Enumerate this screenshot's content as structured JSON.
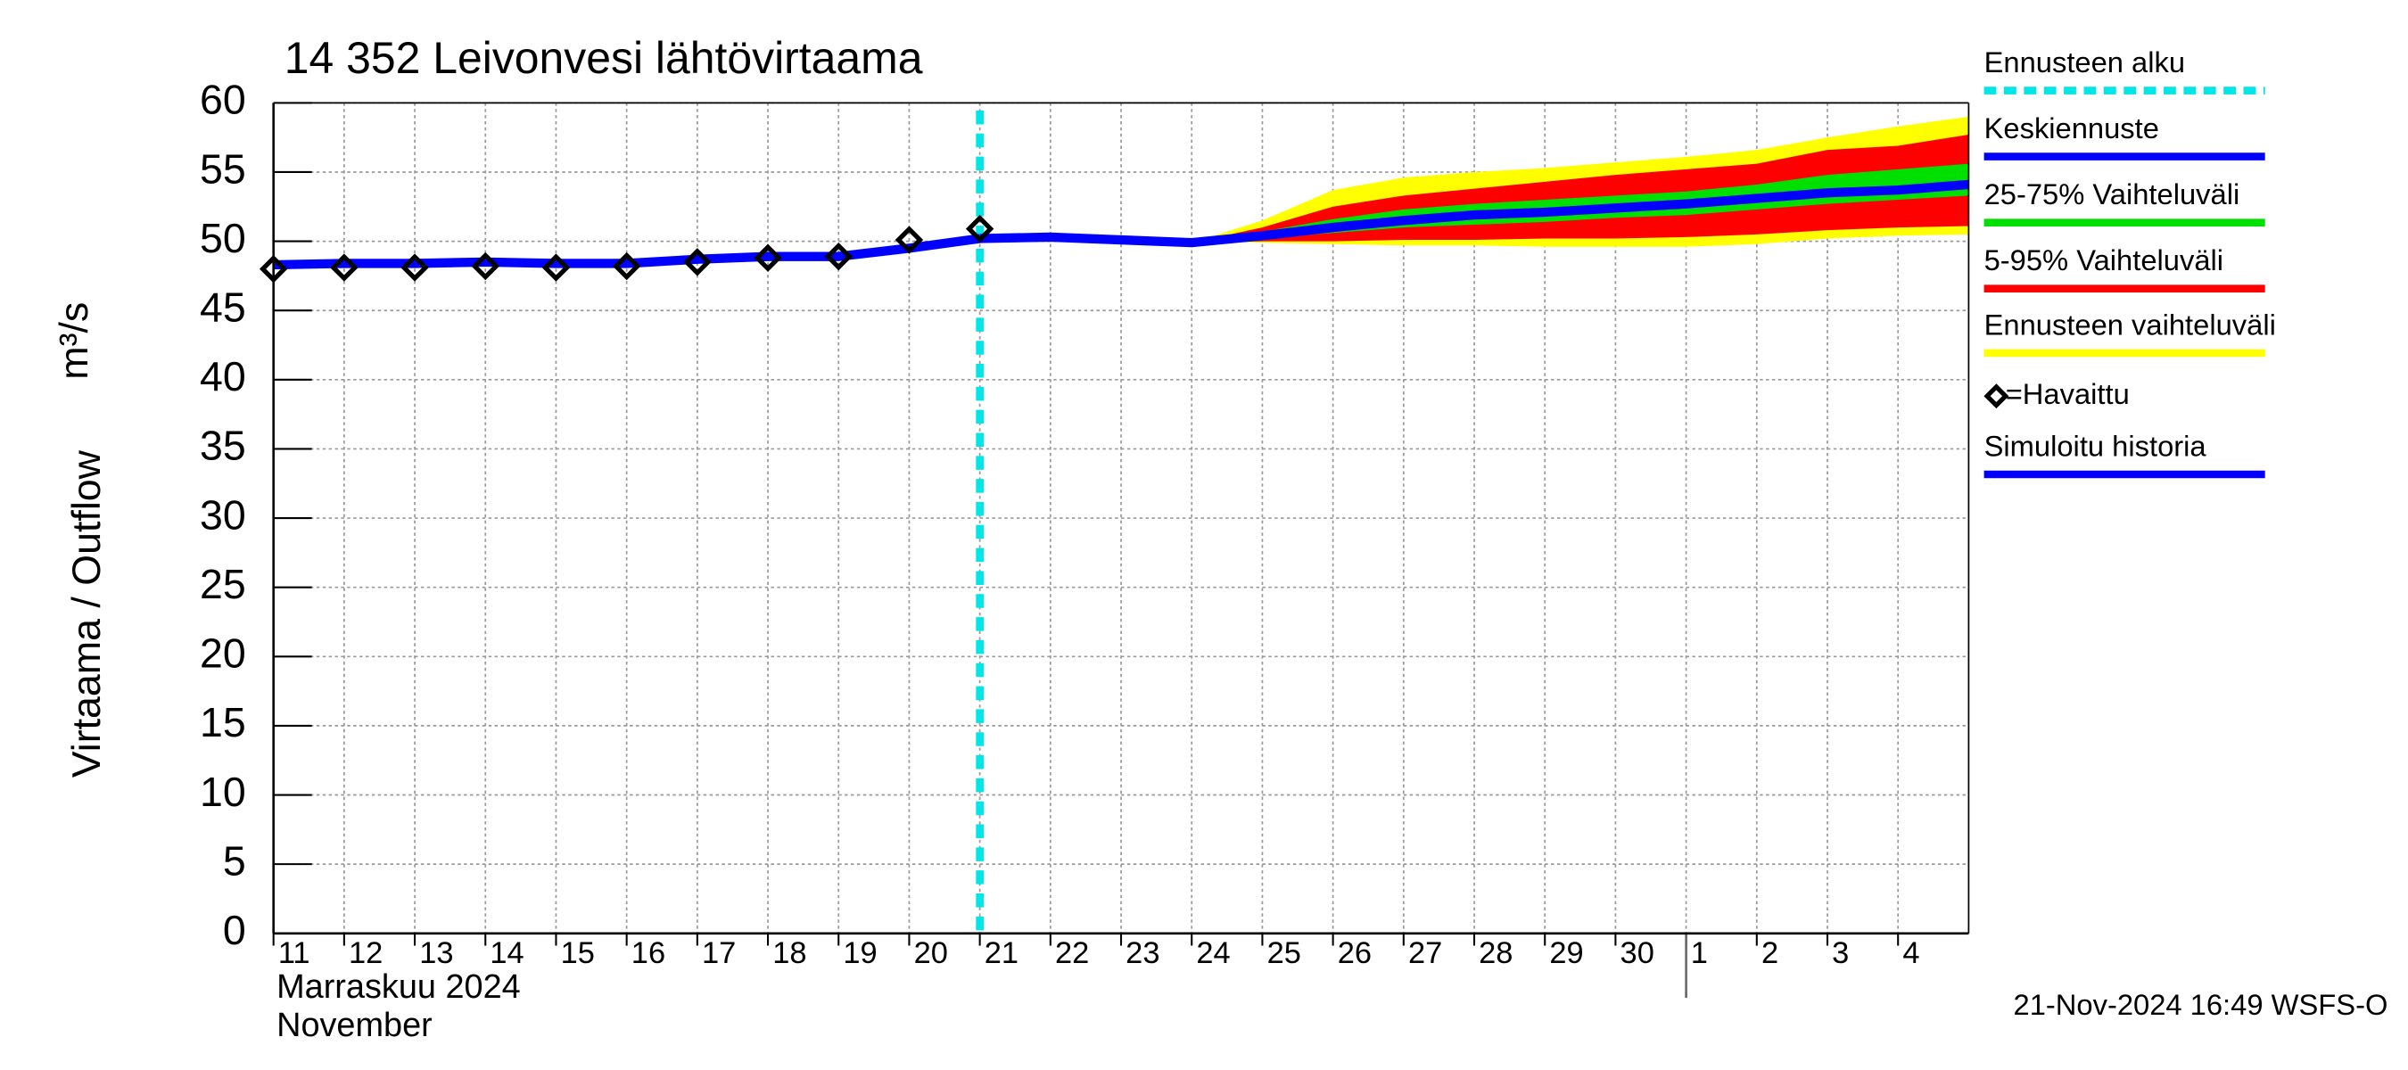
{
  "chart_data": {
    "type": "line",
    "title": "14 352 Leivonvesi lähtövirtaama",
    "ylabel": "Virtaama / Outflow",
    "yunit": "m³/s",
    "month_labels": [
      "Marraskuu 2024",
      "November"
    ],
    "timestamp": "21-Nov-2024 16:49 WSFS-O",
    "month_separator": "2024-12-01",
    "xlim": [
      "2024-11-11",
      "2024-12-05"
    ],
    "xticks": [
      {
        "value": "2024-11-11",
        "label": "11"
      },
      {
        "value": "2024-11-12",
        "label": "12"
      },
      {
        "value": "2024-11-13",
        "label": "13"
      },
      {
        "value": "2024-11-14",
        "label": "14"
      },
      {
        "value": "2024-11-15",
        "label": "15"
      },
      {
        "value": "2024-11-16",
        "label": "16"
      },
      {
        "value": "2024-11-17",
        "label": "17"
      },
      {
        "value": "2024-11-18",
        "label": "18"
      },
      {
        "value": "2024-11-19",
        "label": "19"
      },
      {
        "value": "2024-11-20",
        "label": "20"
      },
      {
        "value": "2024-11-21",
        "label": "21"
      },
      {
        "value": "2024-11-22",
        "label": "22"
      },
      {
        "value": "2024-11-23",
        "label": "23"
      },
      {
        "value": "2024-11-24",
        "label": "24"
      },
      {
        "value": "2024-11-25",
        "label": "25"
      },
      {
        "value": "2024-11-26",
        "label": "26"
      },
      {
        "value": "2024-11-27",
        "label": "27"
      },
      {
        "value": "2024-11-28",
        "label": "28"
      },
      {
        "value": "2024-11-29",
        "label": "29"
      },
      {
        "value": "2024-11-30",
        "label": "30"
      },
      {
        "value": "2024-12-01",
        "label": "1"
      },
      {
        "value": "2024-12-02",
        "label": "2"
      },
      {
        "value": "2024-12-03",
        "label": "3"
      },
      {
        "value": "2024-12-04",
        "label": "4"
      }
    ],
    "ylim": [
      0,
      60
    ],
    "yticks": [
      0,
      5,
      10,
      15,
      20,
      25,
      30,
      35,
      40,
      45,
      50,
      55,
      60
    ],
    "grid": true,
    "forecast_start": {
      "name": "Ennusteen alku",
      "x": "2024-11-21",
      "color": "#00e5e5"
    },
    "bands": [
      {
        "name": "Ennusteen vaihteluväli",
        "color": "#ffff00",
        "x": [
          "2024-11-24",
          "2024-11-25",
          "2024-11-26",
          "2024-11-27",
          "2024-11-28",
          "2024-11-29",
          "2024-11-30",
          "2024-12-01",
          "2024-12-02",
          "2024-12-03",
          "2024-12-04",
          "2024-12-05"
        ],
        "upper": [
          49.9,
          51.5,
          53.7,
          54.6,
          55,
          55.3,
          55.7,
          56.1,
          56.6,
          57.5,
          58.3,
          59
        ],
        "lower": [
          49.9,
          49.9,
          49.8,
          49.7,
          49.7,
          49.6,
          49.6,
          49.6,
          49.8,
          50.2,
          50.4,
          50.5
        ]
      },
      {
        "name": "5-95% Vaihteluväli",
        "color": "#ff0000",
        "x": [
          "2024-11-24",
          "2024-11-25",
          "2024-11-26",
          "2024-11-27",
          "2024-11-28",
          "2024-11-29",
          "2024-11-30",
          "2024-12-01",
          "2024-12-02",
          "2024-12-03",
          "2024-12-04",
          "2024-12-05"
        ],
        "upper": [
          49.9,
          51,
          52.5,
          53.3,
          53.8,
          54.3,
          54.8,
          55.2,
          55.6,
          56.6,
          56.9,
          57.7
        ],
        "lower": [
          49.9,
          50,
          50,
          50.1,
          50.1,
          50.2,
          50.2,
          50.3,
          50.5,
          50.8,
          51,
          51.1
        ]
      },
      {
        "name": "25-75% Vaihteluväli",
        "color": "#00e000",
        "x": [
          "2024-11-24",
          "2024-11-25",
          "2024-11-26",
          "2024-11-27",
          "2024-11-28",
          "2024-11-29",
          "2024-11-30",
          "2024-12-01",
          "2024-12-02",
          "2024-12-03",
          "2024-12-04",
          "2024-12-05"
        ],
        "upper": [
          49.9,
          50.7,
          51.6,
          52.3,
          52.7,
          53,
          53.3,
          53.6,
          54.1,
          54.8,
          55.2,
          55.6
        ],
        "lower": [
          49.9,
          50.2,
          50.6,
          51,
          51.2,
          51.4,
          51.7,
          51.9,
          52.3,
          52.7,
          53,
          53.3
        ]
      }
    ],
    "series": [
      {
        "name": "Keskiennuste",
        "color": "#0000ff",
        "x": [
          "2024-11-21",
          "2024-11-22",
          "2024-11-23",
          "2024-11-24",
          "2024-11-25",
          "2024-11-26",
          "2024-11-27",
          "2024-11-28",
          "2024-11-29",
          "2024-11-30",
          "2024-12-01",
          "2024-12-02",
          "2024-12-03",
          "2024-12-04",
          "2024-12-05"
        ],
        "values": [
          50.2,
          50.3,
          50.1,
          49.9,
          50.4,
          51,
          51.5,
          51.9,
          52.1,
          52.4,
          52.7,
          53.1,
          53.5,
          53.7,
          54.1
        ]
      },
      {
        "name": "Simuloitu historia",
        "color": "#0000ff",
        "x": [
          "2024-11-11",
          "2024-11-12",
          "2024-11-13",
          "2024-11-14",
          "2024-11-15",
          "2024-11-16",
          "2024-11-17",
          "2024-11-18",
          "2024-11-19",
          "2024-11-20",
          "2024-11-21"
        ],
        "values": [
          48.3,
          48.4,
          48.4,
          48.5,
          48.4,
          48.4,
          48.7,
          48.9,
          48.9,
          49.5,
          50.2
        ]
      },
      {
        "name": "=Havaittu",
        "marker": "diamond",
        "color": "#000000",
        "x": [
          "2024-11-11",
          "2024-11-12",
          "2024-11-13",
          "2024-11-14",
          "2024-11-15",
          "2024-11-16",
          "2024-11-17",
          "2024-11-18",
          "2024-11-19",
          "2024-11-20",
          "2024-11-21"
        ],
        "values": [
          48,
          48.1,
          48.1,
          48.2,
          48.1,
          48.2,
          48.5,
          48.8,
          48.9,
          50.1,
          50.9
        ]
      }
    ]
  }
}
